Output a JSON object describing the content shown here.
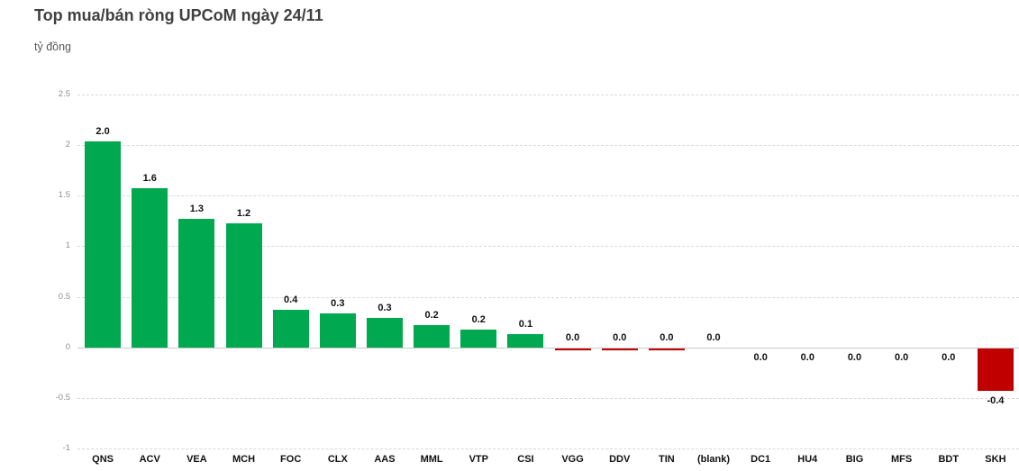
{
  "header": {
    "title": "Top mua/bán ròng UPCoM ngày 24/11",
    "subtitle": "tỷ đồng"
  },
  "chart_data": {
    "type": "bar",
    "title": "Top mua/bán ròng UPCoM ngày 24/11",
    "unit": "tỷ đồng",
    "categories": [
      "QNS",
      "ACV",
      "VEA",
      "MCH",
      "FOC",
      "CLX",
      "AAS",
      "MML",
      "VTP",
      "CSI",
      "VGG",
      "DDV",
      "TIN",
      "(blank)",
      "DC1",
      "HU4",
      "BIG",
      "MFS",
      "BDT",
      "SKH"
    ],
    "series": [
      {
        "values": [
          2.0,
          1.6,
          1.3,
          1.2,
          0.4,
          0.3,
          0.3,
          0.2,
          0.2,
          0.1,
          0.0,
          0.0,
          0.0,
          0.0,
          0.0,
          0.0,
          0.0,
          0.0,
          0.0,
          -0.4
        ],
        "labels": [
          "2.0",
          "1.6",
          "1.3",
          "1.2",
          "0.4",
          "0.3",
          "0.3",
          "0.2",
          "0.2",
          "0.1",
          "0.0",
          "0.0",
          "0.0",
          "0.0",
          "0.0",
          "0.0",
          "0.0",
          "0.0",
          "0.0",
          "-0.4"
        ]
      }
    ],
    "bar_render": [
      {
        "ticker": "QNS",
        "draw_value": 2.04,
        "color": "positive",
        "label_side": "above"
      },
      {
        "ticker": "ACV",
        "draw_value": 1.57,
        "color": "positive",
        "label_side": "above"
      },
      {
        "ticker": "VEA",
        "draw_value": 1.27,
        "color": "positive",
        "label_side": "above"
      },
      {
        "ticker": "MCH",
        "draw_value": 1.23,
        "color": "positive",
        "label_side": "above"
      },
      {
        "ticker": "FOC",
        "draw_value": 0.37,
        "color": "positive",
        "label_side": "above"
      },
      {
        "ticker": "CLX",
        "draw_value": 0.34,
        "color": "positive",
        "label_side": "above"
      },
      {
        "ticker": "AAS",
        "draw_value": 0.29,
        "color": "positive",
        "label_side": "above"
      },
      {
        "ticker": "MML",
        "draw_value": 0.22,
        "color": "positive",
        "label_side": "above"
      },
      {
        "ticker": "VTP",
        "draw_value": 0.18,
        "color": "positive",
        "label_side": "above"
      },
      {
        "ticker": "CSI",
        "draw_value": 0.13,
        "color": "positive",
        "label_side": "above"
      },
      {
        "ticker": "VGG",
        "draw_value": -0.02,
        "color": "negative",
        "label_side": "above"
      },
      {
        "ticker": "DDV",
        "draw_value": -0.02,
        "color": "negative",
        "label_side": "above"
      },
      {
        "ticker": "TIN",
        "draw_value": -0.02,
        "color": "negative",
        "label_side": "above"
      },
      {
        "ticker": "(blank)",
        "draw_value": 0,
        "color": "none",
        "label_side": "above"
      },
      {
        "ticker": "DC1",
        "draw_value": 0,
        "color": "none",
        "label_side": "below"
      },
      {
        "ticker": "HU4",
        "draw_value": 0,
        "color": "none",
        "label_side": "below"
      },
      {
        "ticker": "BIG",
        "draw_value": 0,
        "color": "none",
        "label_side": "below"
      },
      {
        "ticker": "MFS",
        "draw_value": 0,
        "color": "none",
        "label_side": "below"
      },
      {
        "ticker": "BDT",
        "draw_value": 0,
        "color": "none",
        "label_side": "below"
      },
      {
        "ticker": "SKH",
        "draw_value": -0.42,
        "color": "negative",
        "label_side": "below"
      }
    ],
    "ylim": [
      -1,
      2.5
    ],
    "y_ticks": [
      "2.5",
      "2",
      "1.5",
      "1",
      "0.5",
      "0",
      "-0.5",
      "-1"
    ],
    "grid": true,
    "legend": false
  },
  "colors": {
    "positive": "#00A84F",
    "negative": "#C00000",
    "gridline": "#D9D9D9",
    "zero_line": "#C9C9C9",
    "axis_text": "#8F8F8F",
    "label_text": "#111111",
    "title_text": "#404040",
    "subtitle_text": "#595959",
    "background": "#FFFFFF"
  }
}
